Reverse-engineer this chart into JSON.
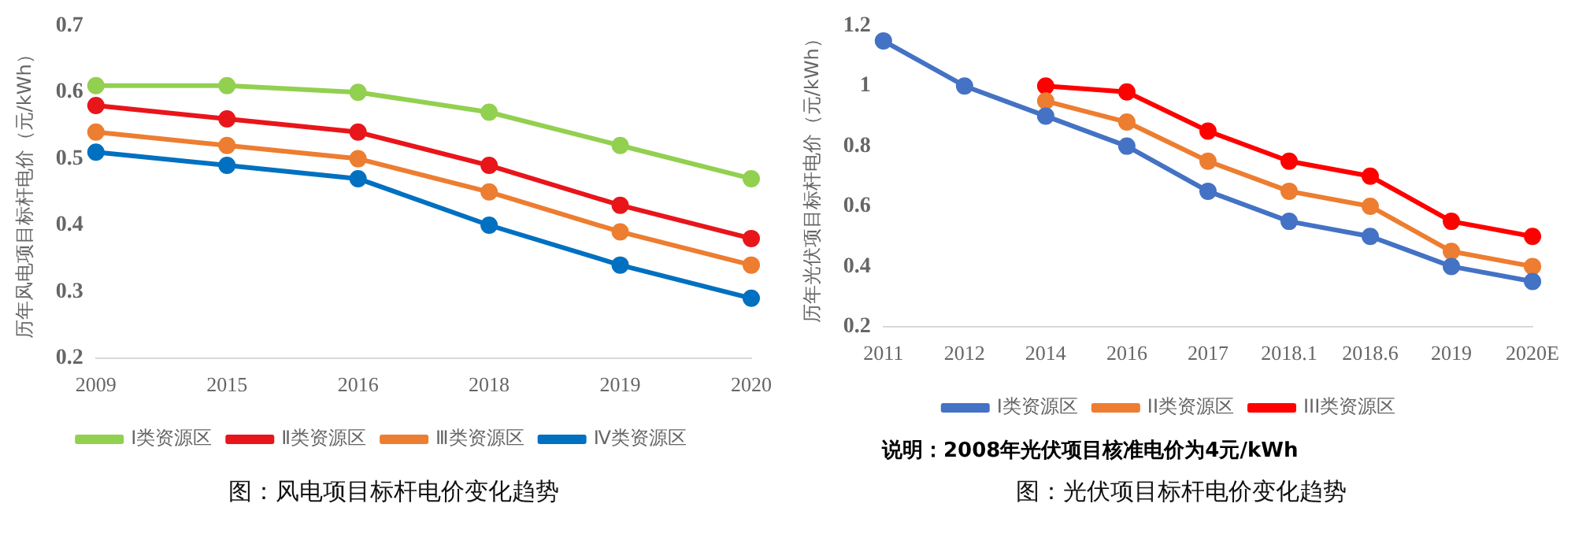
{
  "chart_data": [
    {
      "type": "line",
      "title": "图：风电项目标杆电价变化趋势",
      "ylabel": "历年风电项目标杆电价（元/kWh）",
      "categories": [
        "2009",
        "2015",
        "2016",
        "2018",
        "2019",
        "2020"
      ],
      "series": [
        {
          "name": "Ⅰ类资源区",
          "color": "#92d050",
          "values": [
            0.61,
            0.61,
            0.6,
            0.57,
            0.52,
            0.47
          ]
        },
        {
          "name": "Ⅱ类资源区",
          "color": "#e8151b",
          "values": [
            0.58,
            0.56,
            0.54,
            0.49,
            0.43,
            0.38
          ]
        },
        {
          "name": "Ⅲ类资源区",
          "color": "#ed7d31",
          "values": [
            0.54,
            0.52,
            0.5,
            0.45,
            0.39,
            0.34
          ]
        },
        {
          "name": "Ⅳ类资源区",
          "color": "#0070c0",
          "values": [
            0.51,
            0.49,
            0.47,
            0.4,
            0.34,
            0.29
          ]
        }
      ],
      "ylim": [
        0.2,
        0.7
      ],
      "yticks": [
        0.2,
        0.3,
        0.4,
        0.5,
        0.6,
        0.7
      ],
      "grid": false,
      "legend": "bottom",
      "marker": "circle",
      "line_style": "solid"
    },
    {
      "type": "line",
      "title": "图：光伏项目标杆电价变化趋势",
      "ylabel": "历年光伏项目标杆电价（元/kWh）",
      "annotations": [
        "说明：2008年光伏项目核准电价为4元/kWh"
      ],
      "categories": [
        "2011",
        "2012",
        "2014",
        "2016",
        "2017",
        "2018.1",
        "2018.6",
        "2019",
        "2020E"
      ],
      "series": [
        {
          "name": "I类资源区",
          "color": "#4472c4",
          "values": [
            1.15,
            1.0,
            0.9,
            0.8,
            0.65,
            0.55,
            0.5,
            0.4,
            0.35
          ]
        },
        {
          "name": "II类资源区",
          "color": "#ed7d31",
          "values": [
            null,
            null,
            0.95,
            0.88,
            0.75,
            0.65,
            0.6,
            0.45,
            0.4
          ]
        },
        {
          "name": "III类资源区",
          "color": "#ff0000",
          "values": [
            null,
            null,
            1.0,
            0.98,
            0.85,
            0.75,
            0.7,
            0.55,
            0.5
          ]
        }
      ],
      "ylim": [
        0.2,
        1.2
      ],
      "yticks": [
        0.2,
        0.4,
        0.6,
        0.8,
        1,
        1.2
      ],
      "grid": false,
      "legend": "bottom",
      "marker": "circle",
      "line_style": "solid"
    }
  ]
}
